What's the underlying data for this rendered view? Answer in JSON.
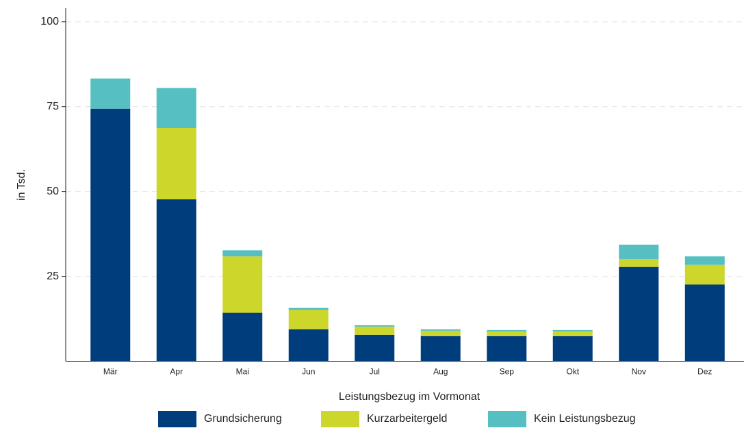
{
  "chart_data": {
    "type": "stacked_bar",
    "y_label": "in Tsd.",
    "legend_title": "Leistungsbezug im Vormonat",
    "legend_position": "bottom",
    "categories": [
      "Mär",
      "Apr",
      "Mai",
      "Jun",
      "Jul",
      "Aug",
      "Sep",
      "Okt",
      "Nov",
      "Dez"
    ],
    "series": [
      {
        "name": "Grundsicherung",
        "color": "#003d7c",
        "values": [
          74.4,
          47.7,
          14.3,
          9.4,
          7.8,
          7.4,
          7.4,
          7.4,
          27.8,
          22.6
        ]
      },
      {
        "name": "Kurzarbeitergeld",
        "color": "#cdd62a",
        "values": [
          0,
          21.0,
          16.6,
          5.7,
          2.4,
          1.6,
          1.4,
          1.4,
          2.3,
          5.8
        ]
      },
      {
        "name": "Kein Leistungsbezug",
        "color": "#56bfc1",
        "values": [
          8.9,
          11.8,
          1.8,
          0.6,
          0.4,
          0.4,
          0.4,
          0.4,
          4.2,
          2.5
        ]
      }
    ],
    "ylim": [
      0,
      104
    ],
    "yticks": [
      25,
      50,
      75,
      100
    ],
    "grid": true
  }
}
